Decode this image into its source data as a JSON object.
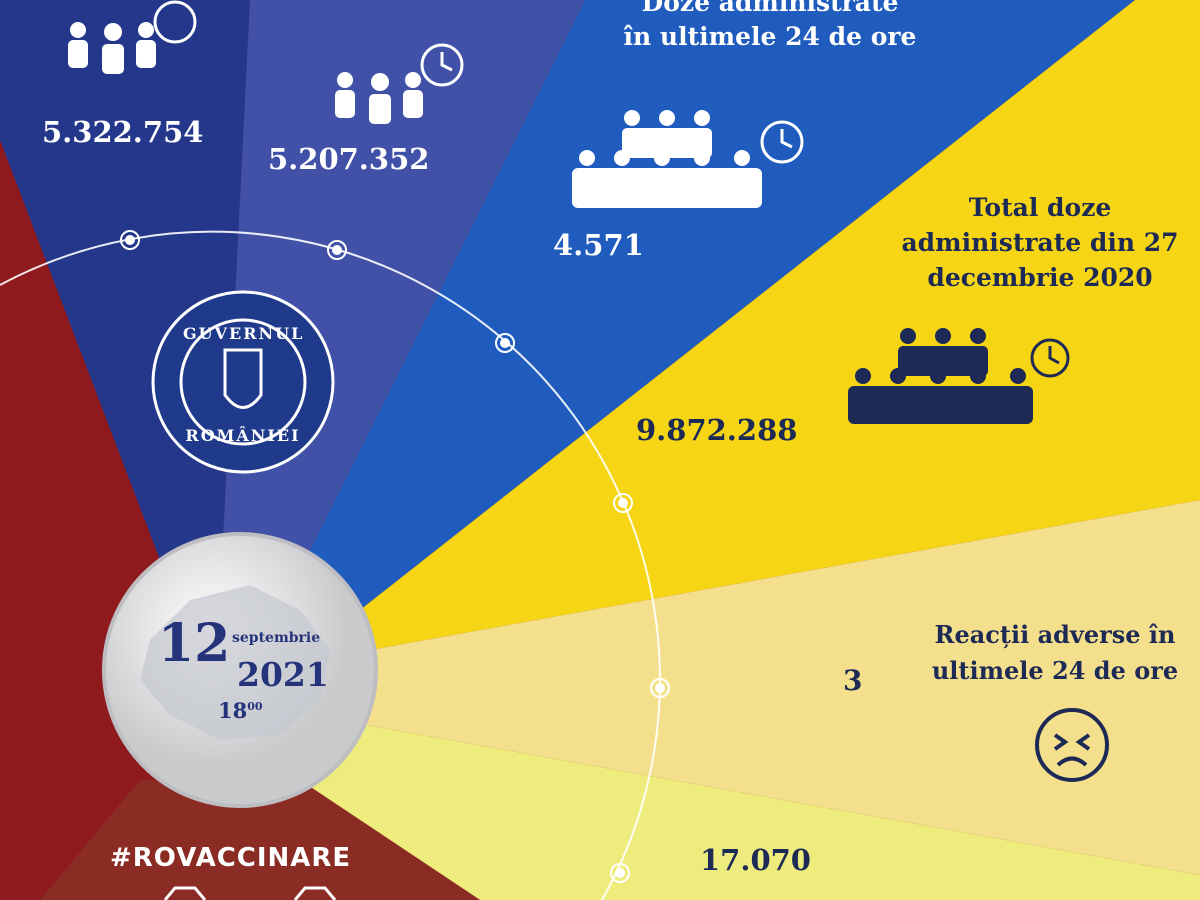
{
  "colors": {
    "red": "#8e1a1e",
    "navy": "#25378a",
    "mid_blue": "#4251a8",
    "royal_blue": "#1f5cbd",
    "yellow": "#f6d514",
    "pale_yellow": "#f4e08c",
    "light_yellow": "#eeec7c",
    "dark_red": "#8a2b24",
    "text_dark": "#1d2a55"
  },
  "stats": {
    "first_value": "5.322.754",
    "second_value": "5.207.352",
    "doses_24h": {
      "title_line1": "Doze administrate",
      "title_line2": "în ultimele 24 de ore",
      "value": "4.571"
    },
    "total_doses": {
      "title_line1": "Total doze",
      "title_line2": "administrate din 27",
      "title_line3": "decembrie 2020",
      "value": "9.872.288"
    },
    "adverse": {
      "title_line1": "Reacții adverse în",
      "title_line2": "ultimele 24 de ore",
      "value": "3",
      "icon": "sad-face-icon"
    },
    "bottom_value": "17.070"
  },
  "logo": {
    "top_text": "GUVERNUL",
    "bottom_text": "ROMÂNIEI"
  },
  "date": {
    "day": "12",
    "month": "septembrie",
    "year": "2021",
    "hour": "18",
    "minutes": "00"
  },
  "hashtag": "#ROVACCINARE"
}
